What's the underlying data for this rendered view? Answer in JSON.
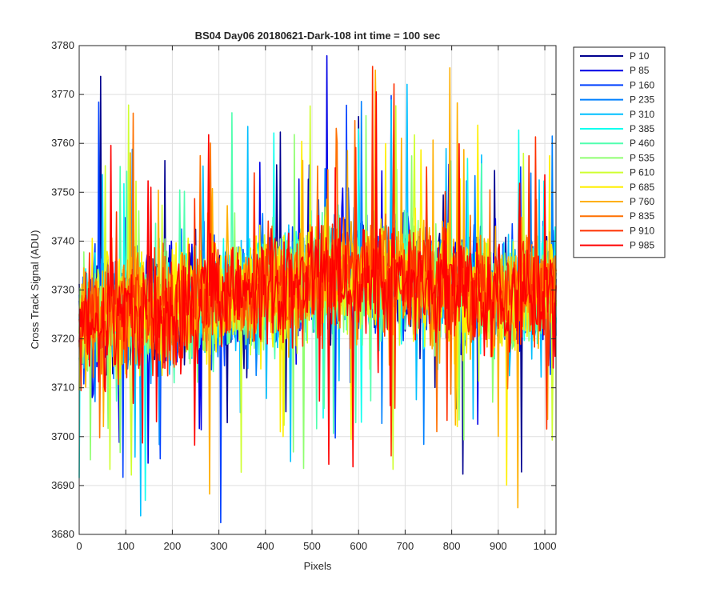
{
  "chart_data": {
    "type": "line",
    "title": "BS04 Day06 20180621-Dark-108 int time = 100 sec",
    "xlabel": "Pixels",
    "ylabel": "Cross Track Signal (ADU)",
    "xlim": [
      0,
      1024
    ],
    "ylim": [
      3680,
      3780
    ],
    "xticks": [
      0,
      100,
      200,
      300,
      400,
      500,
      600,
      700,
      800,
      900,
      1000
    ],
    "yticks": [
      3680,
      3690,
      3700,
      3710,
      3720,
      3730,
      3740,
      3750,
      3760,
      3770,
      3780
    ],
    "grid": true,
    "legend_position": "outside-top-right",
    "series": [
      {
        "name": "P 10",
        "color": "#00008f"
      },
      {
        "name": "P 85",
        "color": "#0000e6"
      },
      {
        "name": "P 160",
        "color": "#0040ff"
      },
      {
        "name": "P 235",
        "color": "#0080ff"
      },
      {
        "name": "P 310",
        "color": "#00bfff"
      },
      {
        "name": "P 385",
        "color": "#10ffef"
      },
      {
        "name": "P 460",
        "color": "#50ffaf"
      },
      {
        "name": "P 535",
        "color": "#8fff70"
      },
      {
        "name": "P 610",
        "color": "#cfff30"
      },
      {
        "name": "P 685",
        "color": "#ffef00"
      },
      {
        "name": "P 760",
        "color": "#ffaf00"
      },
      {
        "name": "P 835",
        "color": "#ff7000"
      },
      {
        "name": "P 910",
        "color": "#ff3000"
      },
      {
        "name": "P 985",
        "color": "#ff0000"
      }
    ],
    "noise_model": {
      "description": "each series is ~1024 noisy samples; baseline rises from ~3724 near pixel 0 to ~3733 near pixel 600 then falls back toward ~3729",
      "baseline_x": [
        0,
        200,
        400,
        600,
        800,
        1024
      ],
      "baseline_y": [
        3724,
        3726,
        3730,
        3733,
        3731,
        3729
      ],
      "spread_adu": 9
    }
  }
}
